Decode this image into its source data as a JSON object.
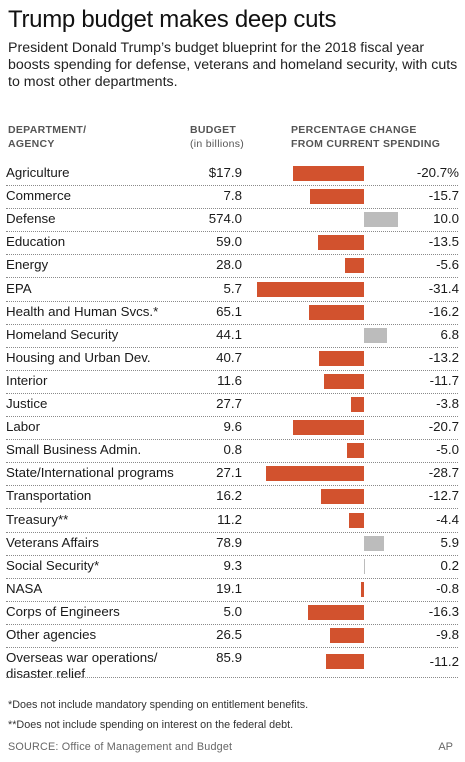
{
  "chart_data": {
    "type": "table",
    "title": "Trump budget makes deep cuts",
    "subtitle": "President Donald Trump’s budget blueprint for the 2018 fiscal year boosts spending for defense, veterans and homeland security, with cuts to most other departments.",
    "columns": {
      "department_line1": "DEPARTMENT/",
      "department_line2": "AGENCY",
      "budget_line1": "BUDGET",
      "budget_line2": "(in billions)",
      "pct_line1": "PERCENTAGE CHANGE",
      "pct_line2": "FROM CURRENT SPENDING"
    },
    "rows": [
      {
        "name": "Agriculture",
        "budget": "$17.9",
        "pct": -20.7,
        "pct_label": "-20.7%"
      },
      {
        "name": "Commerce",
        "budget": "7.8",
        "pct": -15.7,
        "pct_label": "-15.7"
      },
      {
        "name": "Defense",
        "budget": "574.0",
        "pct": 10.0,
        "pct_label": "10.0"
      },
      {
        "name": "Education",
        "budget": "59.0",
        "pct": -13.5,
        "pct_label": "-13.5"
      },
      {
        "name": "Energy",
        "budget": "28.0",
        "pct": -5.6,
        "pct_label": "-5.6"
      },
      {
        "name": "EPA",
        "budget": "5.7",
        "pct": -31.4,
        "pct_label": "-31.4"
      },
      {
        "name": "Health and Human Svcs.*",
        "budget": "65.1",
        "pct": -16.2,
        "pct_label": "-16.2"
      },
      {
        "name": "Homeland Security",
        "budget": "44.1",
        "pct": 6.8,
        "pct_label": "6.8"
      },
      {
        "name": "Housing and Urban Dev.",
        "budget": "40.7",
        "pct": -13.2,
        "pct_label": "-13.2"
      },
      {
        "name": "Interior",
        "budget": "11.6",
        "pct": -11.7,
        "pct_label": "-11.7"
      },
      {
        "name": "Justice",
        "budget": "27.7",
        "pct": -3.8,
        "pct_label": "-3.8"
      },
      {
        "name": "Labor",
        "budget": "9.6",
        "pct": -20.7,
        "pct_label": "-20.7"
      },
      {
        "name": "Small Business Admin.",
        "budget": "0.8",
        "pct": -5.0,
        "pct_label": "-5.0"
      },
      {
        "name": "State/International programs",
        "budget": "27.1",
        "pct": -28.7,
        "pct_label": "-28.7"
      },
      {
        "name": "Transportation",
        "budget": "16.2",
        "pct": -12.7,
        "pct_label": "-12.7"
      },
      {
        "name": "Treasury**",
        "budget": "11.2",
        "pct": -4.4,
        "pct_label": "-4.4"
      },
      {
        "name": "Veterans Affairs",
        "budget": "78.9",
        "pct": 5.9,
        "pct_label": "5.9"
      },
      {
        "name": "Social Security*",
        "budget": "9.3",
        "pct": 0.2,
        "pct_label": "0.2"
      },
      {
        "name": "NASA",
        "budget": "19.1",
        "pct": -0.8,
        "pct_label": "-0.8"
      },
      {
        "name": "Corps of Engineers",
        "budget": "5.0",
        "pct": -16.3,
        "pct_label": "-16.3"
      },
      {
        "name": "Other agencies",
        "budget": "26.5",
        "pct": -9.8,
        "pct_label": "-9.8"
      },
      {
        "name": "Overseas war operations/\ndisaster relief",
        "budget": "85.9",
        "pct": -11.2,
        "pct_label": "-11.2"
      }
    ],
    "colors": {
      "negative": "#d2522e",
      "positive": "#bcbcbc"
    }
  },
  "notes": {
    "note1": "*Does not include mandatory spending on entitlement benefits.",
    "note2": "**Does not include spending on interest on the federal debt."
  },
  "source": "SOURCE: Office of Management and Budget",
  "credit": "AP"
}
